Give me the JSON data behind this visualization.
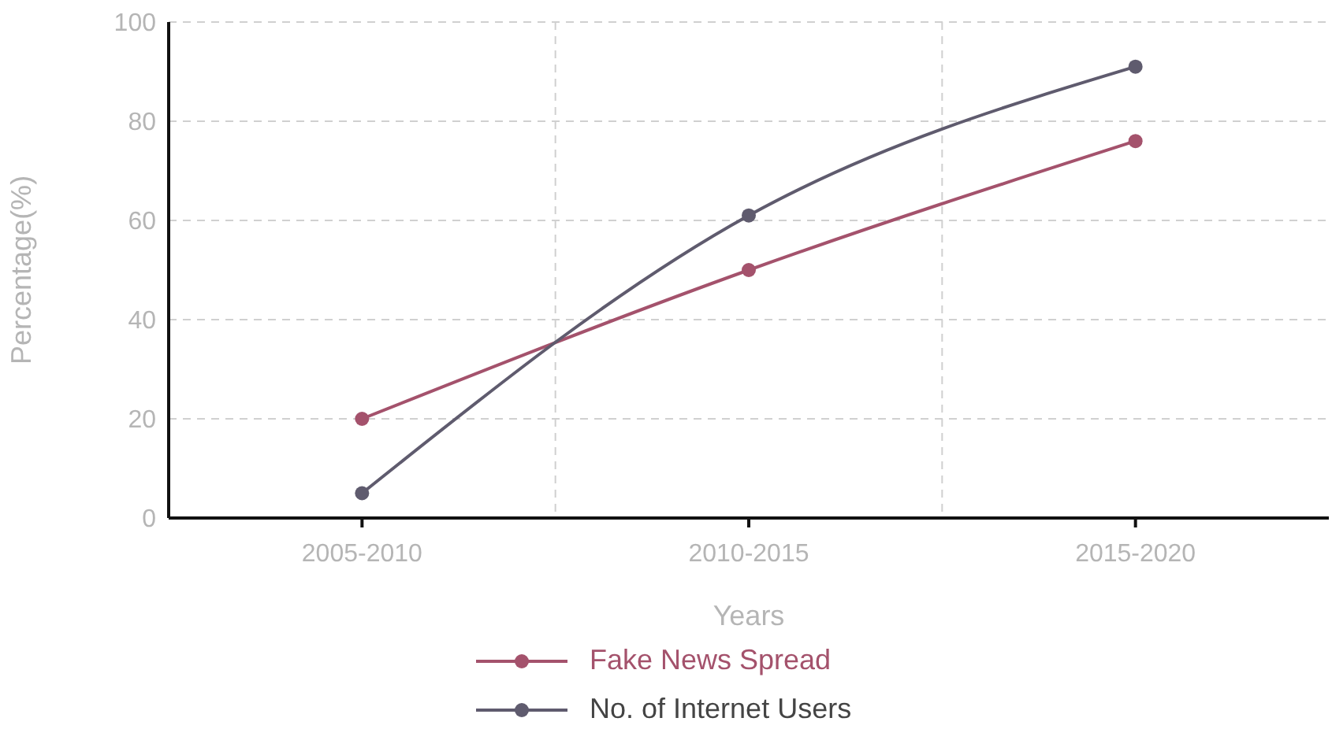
{
  "chart_data": {
    "type": "line",
    "xlabel": "Years",
    "ylabel": "Percentage(%)",
    "categories": [
      "2005-2010",
      "2010-2015",
      "2015-2020"
    ],
    "series": [
      {
        "name": "Fake News Spread",
        "color": "#a4526c",
        "values": [
          20,
          50,
          76
        ]
      },
      {
        "name": "No. of Internet Users",
        "color": "#5f5b6e",
        "values": [
          5,
          61,
          91
        ]
      }
    ],
    "ylim": [
      0,
      100
    ],
    "yticks": [
      0,
      20,
      40,
      60,
      80,
      100
    ],
    "grid": true,
    "legend": "bottom",
    "marker": "circle",
    "line_style": "solid"
  }
}
